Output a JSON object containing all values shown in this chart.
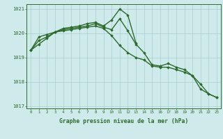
{
  "x": [
    0,
    1,
    2,
    3,
    4,
    5,
    6,
    7,
    8,
    9,
    10,
    11,
    12,
    13,
    14,
    15,
    16,
    17,
    18,
    19,
    20,
    21,
    22,
    23
  ],
  "line1": [
    1019.3,
    1019.85,
    1019.95,
    1020.05,
    1020.2,
    1020.25,
    1020.3,
    1020.4,
    1020.45,
    1020.3,
    1020.55,
    1021.0,
    1020.75,
    1019.6,
    null,
    null,
    null,
    null,
    null,
    null,
    null,
    null,
    null,
    null
  ],
  "line2": [
    1019.3,
    1019.7,
    1019.85,
    1020.05,
    1020.15,
    1020.2,
    1020.25,
    1020.3,
    1020.4,
    1020.25,
    1020.15,
    1020.6,
    1020.1,
    1019.55,
    1019.2,
    1018.7,
    1018.65,
    1018.75,
    1018.6,
    1018.5,
    1018.25,
    1017.7,
    1017.5,
    1017.35
  ],
  "line3": [
    1019.3,
    1019.55,
    1019.8,
    1020.05,
    1020.1,
    1020.15,
    1020.2,
    1020.25,
    1020.3,
    1020.2,
    1019.9,
    1019.5,
    1019.2,
    1019.0,
    1018.9,
    1018.65,
    1018.6,
    1018.6,
    1018.5,
    1018.4,
    1018.25,
    1017.9,
    1017.5,
    1017.35
  ],
  "ylim": [
    1016.9,
    1021.2
  ],
  "yticks": [
    1017,
    1018,
    1019,
    1020,
    1021
  ],
  "xlabel": "Graphe pression niveau de la mer (hPa)",
  "line_color": "#2d6a2d",
  "bg_color": "#ceeaea",
  "grid_color": "#a8cece",
  "marker": "D",
  "marker_size": 1.8,
  "line_width": 1.0
}
